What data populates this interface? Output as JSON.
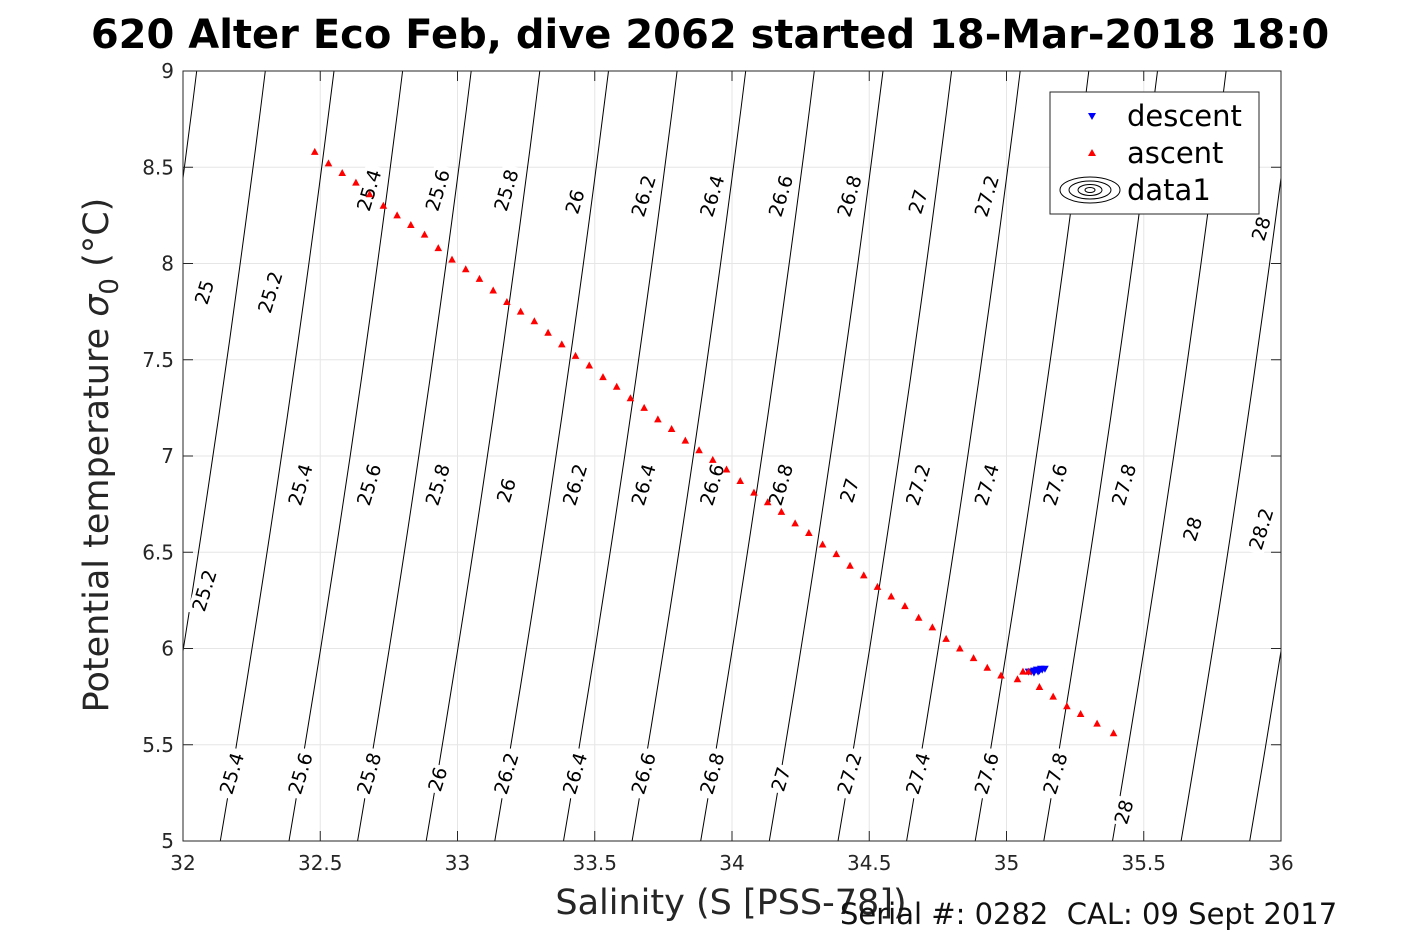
{
  "chart_data": {
    "type": "scatter",
    "title": "620 Alter Eco Feb, dive 2062 started 18-Mar-2018 18:0",
    "xlabel": "Salinity (S [PSS-78])",
    "ylabel_main": "Potential temperature ",
    "ylabel_sym": "σ",
    "ylabel_sub": "0",
    "ylabel_unit": " (°C)",
    "xlim": [
      32,
      36
    ],
    "ylim": [
      5,
      9
    ],
    "xticks": [
      "32",
      "32.5",
      "33",
      "33.5",
      "34",
      "34.5",
      "35",
      "35.5",
      "36"
    ],
    "yticks": [
      "5",
      "5.5",
      "6",
      "6.5",
      "7",
      "7.5",
      "8",
      "8.5",
      "9"
    ],
    "grid": true,
    "legend_position": "top-right",
    "legend": [
      "descent",
      "ascent",
      "data1"
    ],
    "colors": {
      "descent": "#0000ff",
      "ascent": "#ff0000",
      "contour": "#000000",
      "grid": "#e6e6e6"
    },
    "series": [
      {
        "name": "descent",
        "marker": "triangle-down",
        "points": [
          [
            35.08,
            5.88
          ],
          [
            35.09,
            5.88
          ],
          [
            35.1,
            5.885
          ],
          [
            35.11,
            5.89
          ],
          [
            35.12,
            5.885
          ],
          [
            35.13,
            5.89
          ],
          [
            35.14,
            5.895
          ],
          [
            35.1,
            5.875
          ],
          [
            35.115,
            5.88
          ],
          [
            35.125,
            5.895
          ]
        ]
      },
      {
        "name": "ascent",
        "marker": "triangle-up",
        "points": [
          [
            32.48,
            8.58
          ],
          [
            32.53,
            8.52
          ],
          [
            32.58,
            8.47
          ],
          [
            32.63,
            8.42
          ],
          [
            32.68,
            8.36
          ],
          [
            32.73,
            8.3
          ],
          [
            32.78,
            8.25
          ],
          [
            32.83,
            8.2
          ],
          [
            32.88,
            8.15
          ],
          [
            32.93,
            8.08
          ],
          [
            32.98,
            8.02
          ],
          [
            33.03,
            7.97
          ],
          [
            33.08,
            7.92
          ],
          [
            33.13,
            7.86
          ],
          [
            33.18,
            7.8
          ],
          [
            33.23,
            7.75
          ],
          [
            33.28,
            7.7
          ],
          [
            33.33,
            7.64
          ],
          [
            33.38,
            7.58
          ],
          [
            33.43,
            7.52
          ],
          [
            33.48,
            7.47
          ],
          [
            33.53,
            7.41
          ],
          [
            33.58,
            7.36
          ],
          [
            33.63,
            7.3
          ],
          [
            33.68,
            7.25
          ],
          [
            33.73,
            7.19
          ],
          [
            33.78,
            7.14
          ],
          [
            33.83,
            7.08
          ],
          [
            33.88,
            7.03
          ],
          [
            33.93,
            6.98
          ],
          [
            33.98,
            6.93
          ],
          [
            34.03,
            6.87
          ],
          [
            34.08,
            6.81
          ],
          [
            34.13,
            6.76
          ],
          [
            34.18,
            6.71
          ],
          [
            34.23,
            6.65
          ],
          [
            34.28,
            6.6
          ],
          [
            34.33,
            6.54
          ],
          [
            34.38,
            6.49
          ],
          [
            34.43,
            6.43
          ],
          [
            34.48,
            6.38
          ],
          [
            34.53,
            6.32
          ],
          [
            34.58,
            6.27
          ],
          [
            34.63,
            6.22
          ],
          [
            34.68,
            6.16
          ],
          [
            34.73,
            6.11
          ],
          [
            34.78,
            6.05
          ],
          [
            34.83,
            6.0
          ],
          [
            34.88,
            5.95
          ],
          [
            34.93,
            5.9
          ],
          [
            34.98,
            5.86
          ],
          [
            35.04,
            5.84
          ],
          [
            35.08,
            5.88
          ],
          [
            35.12,
            5.8
          ],
          [
            35.17,
            5.75
          ],
          [
            35.22,
            5.7
          ],
          [
            35.27,
            5.66
          ],
          [
            35.33,
            5.61
          ],
          [
            35.39,
            5.56
          ],
          [
            35.06,
            5.88
          ]
        ]
      }
    ],
    "contours": [
      {
        "x_at_9": 32.0,
        "slope": 0.0875
      },
      {
        "x_at_9": 32.05,
        "slope": 0.0875
      },
      {
        "x_at_9": 32.3,
        "slope": 0.0875
      },
      {
        "x_at_9": 32.55,
        "slope": 0.0875
      },
      {
        "x_at_9": 32.8,
        "slope": 0.0875
      },
      {
        "x_at_9": 33.05,
        "slope": 0.0875
      },
      {
        "x_at_9": 33.3,
        "slope": 0.0875
      },
      {
        "x_at_9": 33.55,
        "slope": 0.0875
      },
      {
        "x_at_9": 33.8,
        "slope": 0.0875
      },
      {
        "x_at_9": 34.05,
        "slope": 0.0875
      },
      {
        "x_at_9": 34.3,
        "slope": 0.0875
      },
      {
        "x_at_9": 34.55,
        "slope": 0.0875
      },
      {
        "x_at_9": 34.8,
        "slope": 0.0875
      },
      {
        "x_at_9": 35.05,
        "slope": 0.0875
      },
      {
        "x_at_9": 35.3,
        "slope": 0.0875
      },
      {
        "x_at_9": 35.55,
        "slope": 0.0875
      },
      {
        "x_at_9": 35.8,
        "slope": 0.0875
      },
      {
        "x_at_9": 36.05,
        "slope": 0.0875
      },
      {
        "x_at_9": 36.3,
        "slope": 0.0875
      }
    ],
    "contour_labels": [
      {
        "text": "25",
        "x": 32.08,
        "y": 7.85
      },
      {
        "text": "25.2",
        "x": 32.32,
        "y": 7.85
      },
      {
        "text": "25.4",
        "x": 32.68,
        "y": 8.38
      },
      {
        "text": "25.6",
        "x": 32.93,
        "y": 8.38
      },
      {
        "text": "25.8",
        "x": 33.18,
        "y": 8.38
      },
      {
        "text": "26",
        "x": 33.43,
        "y": 8.32
      },
      {
        "text": "26.2",
        "x": 33.68,
        "y": 8.35
      },
      {
        "text": "26.4",
        "x": 33.93,
        "y": 8.35
      },
      {
        "text": "26.6",
        "x": 34.18,
        "y": 8.35
      },
      {
        "text": "26.8",
        "x": 34.43,
        "y": 8.35
      },
      {
        "text": "27",
        "x": 34.68,
        "y": 8.32
      },
      {
        "text": "27.2",
        "x": 34.93,
        "y": 8.35
      },
      {
        "text": "28",
        "x": 35.93,
        "y": 8.18
      },
      {
        "text": "25.2",
        "x": 32.08,
        "y": 6.3
      },
      {
        "text": "25.4",
        "x": 32.43,
        "y": 6.85
      },
      {
        "text": "25.6",
        "x": 32.68,
        "y": 6.85
      },
      {
        "text": "25.8",
        "x": 32.93,
        "y": 6.85
      },
      {
        "text": "26",
        "x": 33.18,
        "y": 6.82
      },
      {
        "text": "26.2",
        "x": 33.43,
        "y": 6.85
      },
      {
        "text": "26.4",
        "x": 33.68,
        "y": 6.85
      },
      {
        "text": "26.6",
        "x": 33.93,
        "y": 6.85
      },
      {
        "text": "26.8",
        "x": 34.18,
        "y": 6.85
      },
      {
        "text": "27",
        "x": 34.43,
        "y": 6.82
      },
      {
        "text": "27.2",
        "x": 34.68,
        "y": 6.85
      },
      {
        "text": "27.4",
        "x": 34.93,
        "y": 6.85
      },
      {
        "text": "27.6",
        "x": 35.18,
        "y": 6.85
      },
      {
        "text": "27.8",
        "x": 35.43,
        "y": 6.85
      },
      {
        "text": "28",
        "x": 35.68,
        "y": 6.62
      },
      {
        "text": "28.2",
        "x": 35.93,
        "y": 6.62
      },
      {
        "text": "25.4",
        "x": 32.18,
        "y": 5.35
      },
      {
        "text": "25.6",
        "x": 32.43,
        "y": 5.35
      },
      {
        "text": "25.8",
        "x": 32.68,
        "y": 5.35
      },
      {
        "text": "26",
        "x": 32.93,
        "y": 5.32
      },
      {
        "text": "26.2",
        "x": 33.18,
        "y": 5.35
      },
      {
        "text": "26.4",
        "x": 33.43,
        "y": 5.35
      },
      {
        "text": "26.6",
        "x": 33.68,
        "y": 5.35
      },
      {
        "text": "26.8",
        "x": 33.93,
        "y": 5.35
      },
      {
        "text": "27",
        "x": 34.18,
        "y": 5.32
      },
      {
        "text": "27.2",
        "x": 34.43,
        "y": 5.35
      },
      {
        "text": "27.4",
        "x": 34.68,
        "y": 5.35
      },
      {
        "text": "27.6",
        "x": 34.93,
        "y": 5.35
      },
      {
        "text": "27.8",
        "x": 35.18,
        "y": 5.35
      },
      {
        "text": "28",
        "x": 35.43,
        "y": 5.15
      }
    ]
  },
  "footer": "Serial #: 0282  CAL: 09 Sept 2017"
}
